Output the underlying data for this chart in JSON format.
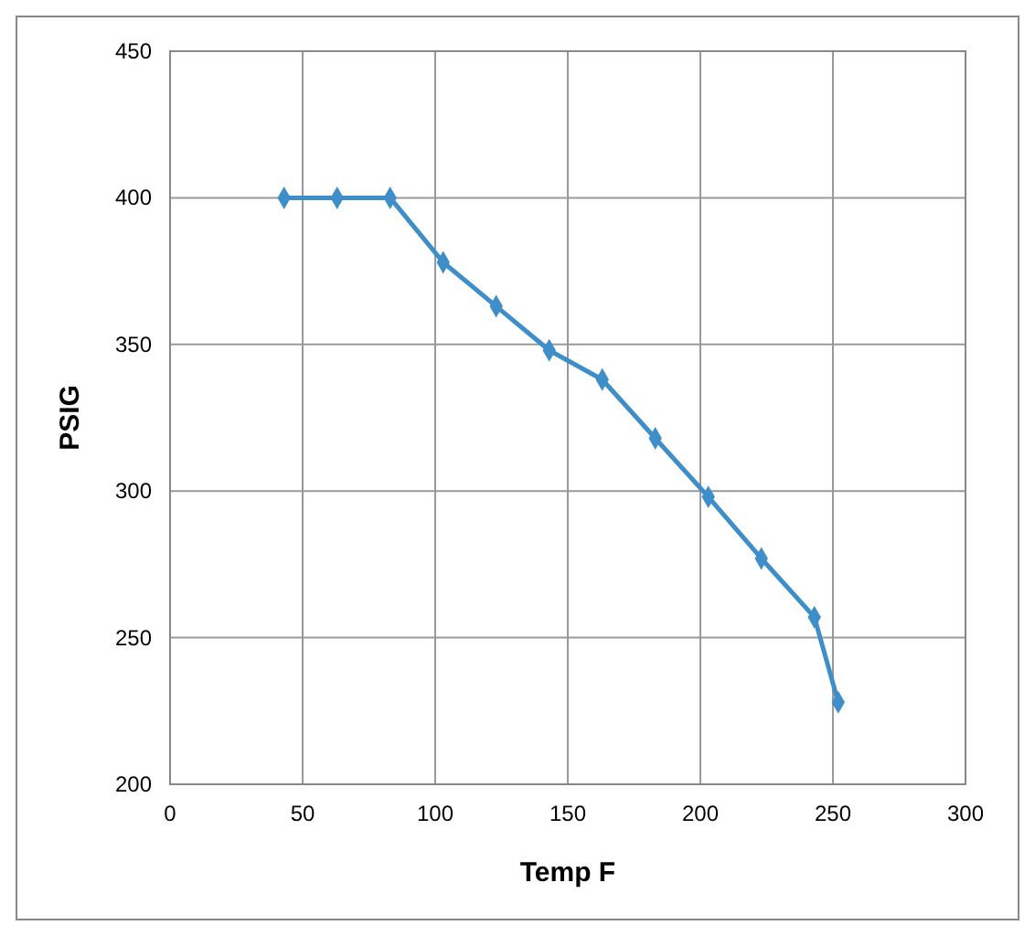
{
  "chart_data": {
    "type": "line",
    "xlabel": "Temp F",
    "ylabel": "PSIG",
    "x": [
      43,
      63,
      83,
      103,
      123,
      143,
      163,
      183,
      203,
      223,
      243,
      252
    ],
    "values": [
      400,
      400,
      400,
      378,
      363,
      348,
      338,
      318,
      298,
      277,
      257,
      228
    ],
    "color": "#3d8ec9",
    "marker": "diamond",
    "line_style": "solid",
    "grid": true,
    "xlim": [
      0,
      300
    ],
    "xticks": [
      0,
      50,
      100,
      150,
      200,
      250,
      300
    ],
    "ylim": [
      200,
      450
    ],
    "yticks": [
      200,
      250,
      300,
      350,
      400,
      450
    ]
  }
}
